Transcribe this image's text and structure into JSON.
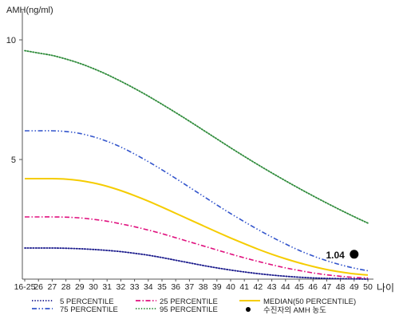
{
  "chart_data": {
    "type": "line",
    "ylabel": "AMH(ng/ml)",
    "xlabel": "나이",
    "x": [
      "16-25",
      "26",
      "27",
      "28",
      "29",
      "30",
      "31",
      "32",
      "33",
      "34",
      "35",
      "36",
      "37",
      "38",
      "39",
      "40",
      "41",
      "42",
      "43",
      "44",
      "45",
      "46",
      "47",
      "48",
      "49",
      "50"
    ],
    "yticks": [
      5,
      10
    ],
    "ylim": [
      0,
      11
    ],
    "grid": false,
    "legend_position": "bottom",
    "series": [
      {
        "name": "5 PERCENTILE",
        "color": "#1a1a8c",
        "dash": "dotted",
        "values": [
          1.3,
          1.3,
          1.3,
          1.29,
          1.27,
          1.24,
          1.2,
          1.15,
          1.08,
          1.0,
          0.9,
          0.79,
          0.68,
          0.57,
          0.47,
          0.38,
          0.3,
          0.23,
          0.17,
          0.12,
          0.08,
          0.05,
          0.03,
          0.02,
          0.01,
          0.0
        ]
      },
      {
        "name": "25 PERCENTILE",
        "color": "#e0107e",
        "dash": "dashdot",
        "values": [
          2.6,
          2.6,
          2.6,
          2.59,
          2.56,
          2.5,
          2.42,
          2.31,
          2.19,
          2.05,
          1.9,
          1.73,
          1.56,
          1.39,
          1.22,
          1.05,
          0.89,
          0.74,
          0.6,
          0.47,
          0.36,
          0.26,
          0.18,
          0.12,
          0.07,
          0.05
        ]
      },
      {
        "name": "MEDIAN(50 PERCENTILE)",
        "color": "#f5cc00",
        "dash": "solid",
        "values": [
          4.2,
          4.2,
          4.2,
          4.18,
          4.12,
          4.02,
          3.88,
          3.7,
          3.49,
          3.26,
          3.01,
          2.75,
          2.49,
          2.23,
          1.97,
          1.72,
          1.48,
          1.25,
          1.04,
          0.85,
          0.68,
          0.53,
          0.4,
          0.3,
          0.22,
          0.17
        ]
      },
      {
        "name": "75 PERCENTILE",
        "color": "#3355cc",
        "dash": "dashdotdot",
        "values": [
          6.2,
          6.2,
          6.2,
          6.17,
          6.09,
          5.95,
          5.76,
          5.52,
          5.23,
          4.91,
          4.57,
          4.21,
          3.84,
          3.47,
          3.1,
          2.74,
          2.4,
          2.07,
          1.76,
          1.47,
          1.2,
          0.97,
          0.77,
          0.6,
          0.46,
          0.35
        ]
      },
      {
        "name": "95 PERCENTILE",
        "color": "#2e8b3a",
        "dash": "dotted",
        "values": [
          9.55,
          9.45,
          9.35,
          9.2,
          9.02,
          8.8,
          8.55,
          8.27,
          7.97,
          7.65,
          7.31,
          6.96,
          6.6,
          6.23,
          5.86,
          5.49,
          5.13,
          4.78,
          4.44,
          4.11,
          3.79,
          3.48,
          3.18,
          2.89,
          2.61,
          2.34
        ]
      }
    ],
    "annotations": [
      {
        "name": "수진자의 AMH 농도",
        "label": "1.04",
        "x": "49",
        "y": 1.04,
        "color": "#000000"
      }
    ]
  }
}
